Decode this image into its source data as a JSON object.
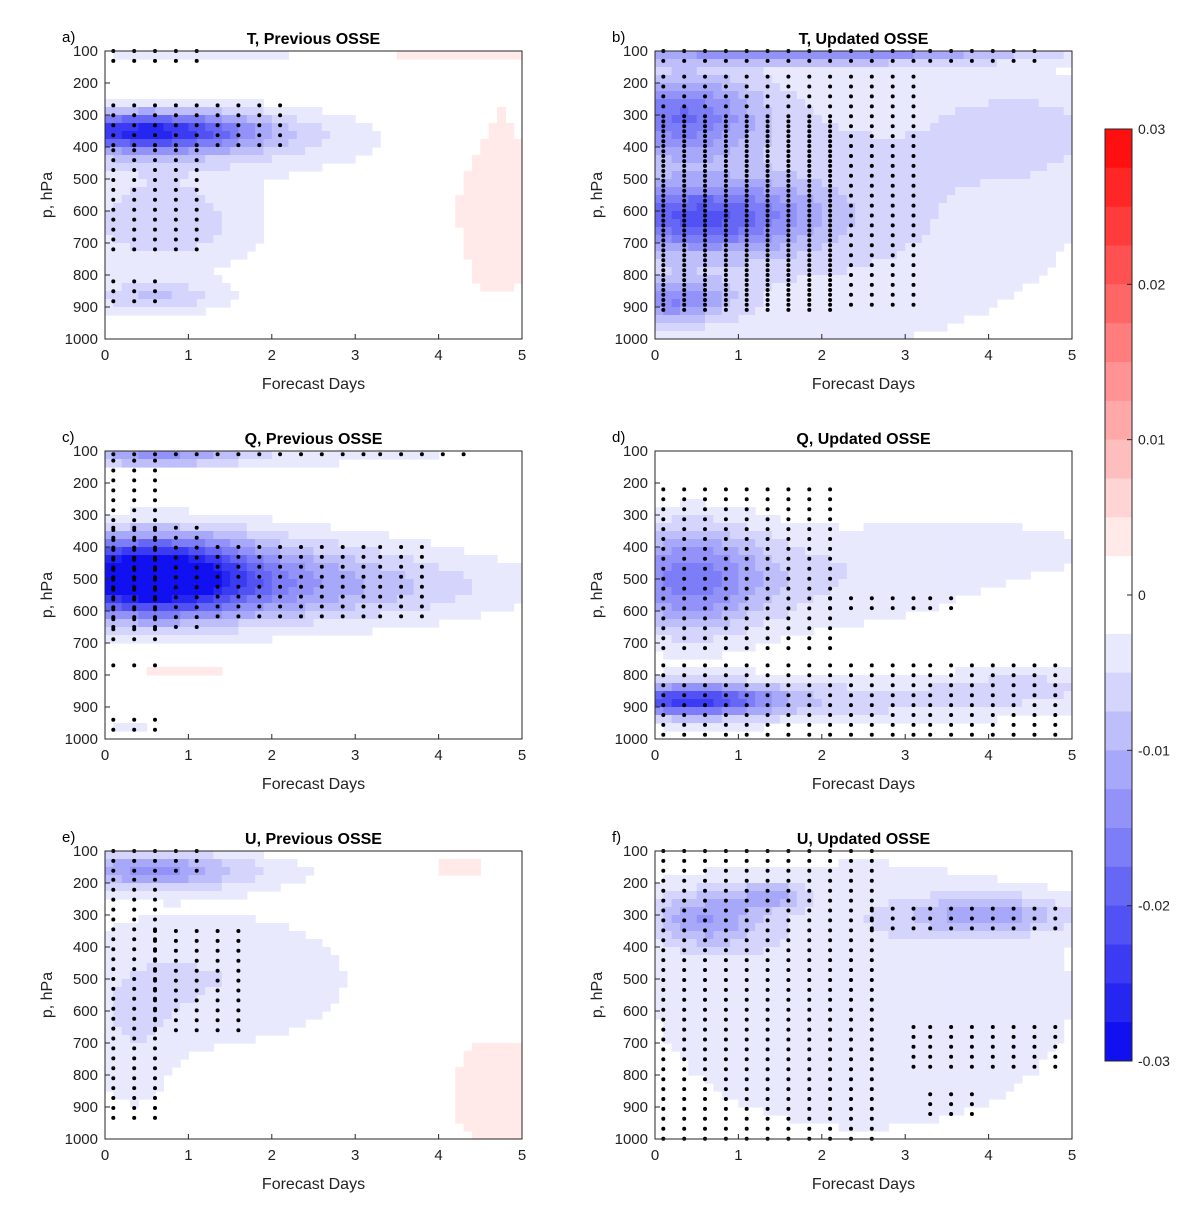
{
  "colors": {
    "negative_max": "#1010f0",
    "positive_max": "#ff1010",
    "neutral": "#ffffff",
    "dot": "#000000",
    "axis": "#262626"
  },
  "chart_data": [
    {
      "type": "heatmap",
      "panel_label": "a)",
      "title": "T, Previous OSSE",
      "xlabel": "Forecast Days",
      "ylabel": "p, hPa",
      "xlim": [
        0,
        5
      ],
      "ylim": [
        100,
        1000
      ],
      "x_ticks": [
        "0",
        "1",
        "2",
        "3",
        "4",
        "5"
      ],
      "y_ticks": [
        "100",
        "200",
        "300",
        "400",
        "500",
        "600",
        "700",
        "800",
        "900",
        "1000"
      ],
      "blobs": [
        {
          "x": 0.5,
          "y": 350,
          "rx": 1.3,
          "ry": 60,
          "v": -0.021
        },
        {
          "x": 0.9,
          "y": 380,
          "rx": 2.6,
          "ry": 110,
          "v": -0.006
        },
        {
          "x": 0.7,
          "y": 640,
          "rx": 1.2,
          "ry": 160,
          "v": -0.007
        },
        {
          "x": 0.6,
          "y": 870,
          "rx": 0.9,
          "ry": 50,
          "v": -0.007
        },
        {
          "x": 1.3,
          "y": 110,
          "rx": 1.7,
          "ry": 30,
          "v": -0.004
        },
        {
          "x": 4.7,
          "y": 550,
          "rx": 0.7,
          "ry": 450,
          "v": 0.004
        },
        {
          "x": 4.0,
          "y": 110,
          "rx": 1.2,
          "ry": 20,
          "v": 0.004
        },
        {
          "x": 1.2,
          "y": 200,
          "rx": 1.2,
          "ry": 20,
          "v": 0.003
        }
      ],
      "stipple": [
        {
          "x0": 0.1,
          "x1": 2.1,
          "y0": 270,
          "y1": 410
        },
        {
          "x0": 0.1,
          "x1": 1.1,
          "y0": 410,
          "y1": 740
        },
        {
          "x0": 0.1,
          "x1": 0.6,
          "y0": 820,
          "y1": 900
        },
        {
          "x0": 0.1,
          "x1": 1.1,
          "y0": 100,
          "y1": 140
        }
      ]
    },
    {
      "type": "heatmap",
      "panel_label": "b)",
      "title": "T, Updated OSSE",
      "xlabel": "Forecast Days",
      "ylabel": "p, hPa",
      "xlim": [
        0,
        5
      ],
      "ylim": [
        100,
        1000
      ],
      "x_ticks": [
        "0",
        "1",
        "2",
        "3",
        "4",
        "5"
      ],
      "y_ticks": [
        "100",
        "200",
        "300",
        "400",
        "500",
        "600",
        "700",
        "800",
        "900",
        "1000"
      ],
      "blobs": [
        {
          "x": 0.3,
          "y": 300,
          "rx": 0.9,
          "ry": 130,
          "v": -0.014
        },
        {
          "x": 0.5,
          "y": 620,
          "rx": 1.3,
          "ry": 110,
          "v": -0.016
        },
        {
          "x": 0.2,
          "y": 880,
          "rx": 0.7,
          "ry": 70,
          "v": -0.012
        },
        {
          "x": 2.0,
          "y": 110,
          "rx": 2.6,
          "ry": 30,
          "v": -0.012
        },
        {
          "x": 1.8,
          "y": 560,
          "rx": 3.5,
          "ry": 500,
          "v": -0.006
        },
        {
          "x": 4.5,
          "y": 350,
          "rx": 1.0,
          "ry": 150,
          "v": -0.004
        }
      ],
      "stipple": [
        {
          "x0": 0.1,
          "x1": 4.6,
          "y0": 100,
          "y1": 140
        },
        {
          "x0": 0.1,
          "x1": 3.1,
          "y0": 180,
          "y1": 920
        },
        {
          "x0": 0.1,
          "x1": 2.1,
          "y0": 320,
          "y1": 920
        }
      ]
    },
    {
      "type": "heatmap",
      "panel_label": "c)",
      "title": "Q, Previous OSSE",
      "xlabel": "Forecast Days",
      "ylabel": "p, hPa",
      "xlim": [
        0,
        5
      ],
      "ylim": [
        100,
        1000
      ],
      "x_ticks": [
        "0",
        "1",
        "2",
        "3",
        "4",
        "5"
      ],
      "y_ticks": [
        "100",
        "200",
        "300",
        "400",
        "500",
        "600",
        "700",
        "800",
        "900",
        "1000"
      ],
      "blobs": [
        {
          "x": 0.5,
          "y": 490,
          "rx": 1.2,
          "ry": 120,
          "v": -0.028
        },
        {
          "x": 1.6,
          "y": 500,
          "rx": 2.4,
          "ry": 150,
          "v": -0.009
        },
        {
          "x": 2.6,
          "y": 530,
          "rx": 3.0,
          "ry": 100,
          "v": -0.004
        },
        {
          "x": 0.6,
          "y": 120,
          "rx": 1.0,
          "ry": 25,
          "v": -0.012
        },
        {
          "x": 2.5,
          "y": 120,
          "rx": 2.5,
          "ry": 25,
          "v": -0.004
        },
        {
          "x": 1.0,
          "y": 790,
          "rx": 1.6,
          "ry": 40,
          "v": 0.003
        },
        {
          "x": 0.3,
          "y": 970,
          "rx": 0.5,
          "ry": 40,
          "v": -0.003
        }
      ],
      "stipple": [
        {
          "x0": 0.1,
          "x1": 4.5,
          "y0": 110,
          "y1": 130
        },
        {
          "x0": 0.1,
          "x1": 0.6,
          "y0": 130,
          "y1": 700
        },
        {
          "x0": 0.1,
          "x1": 1.3,
          "y0": 340,
          "y1": 680
        },
        {
          "x0": 1.3,
          "x1": 4.0,
          "y0": 400,
          "y1": 620
        },
        {
          "x0": 0.1,
          "x1": 0.6,
          "y0": 770,
          "y1": 800
        },
        {
          "x0": 0.1,
          "x1": 0.6,
          "y0": 940,
          "y1": 990
        }
      ]
    },
    {
      "type": "heatmap",
      "panel_label": "d)",
      "title": "Q, Updated OSSE",
      "xlabel": "Forecast Days",
      "ylabel": "p, hPa",
      "xlim": [
        0,
        5
      ],
      "ylim": [
        100,
        1000
      ],
      "x_ticks": [
        "0",
        "1",
        "2",
        "3",
        "4",
        "5"
      ],
      "y_ticks": [
        "100",
        "200",
        "300",
        "400",
        "500",
        "600",
        "700",
        "800",
        "900",
        "1000"
      ],
      "blobs": [
        {
          "x": 0.4,
          "y": 500,
          "rx": 0.9,
          "ry": 170,
          "v": -0.013
        },
        {
          "x": 1.6,
          "y": 500,
          "rx": 2.6,
          "ry": 180,
          "v": -0.005
        },
        {
          "x": 0.4,
          "y": 880,
          "rx": 1.0,
          "ry": 50,
          "v": -0.02
        },
        {
          "x": 2.2,
          "y": 880,
          "rx": 3.0,
          "ry": 80,
          "v": -0.006
        },
        {
          "x": 4.5,
          "y": 830,
          "rx": 1.0,
          "ry": 60,
          "v": -0.004
        },
        {
          "x": 4.2,
          "y": 400,
          "rx": 1.5,
          "ry": 90,
          "v": -0.003
        },
        {
          "x": 2.5,
          "y": 100,
          "rx": 2.5,
          "ry": 12,
          "v": 0.003
        }
      ],
      "stipple": [
        {
          "x0": 0.1,
          "x1": 2.1,
          "y0": 220,
          "y1": 720
        },
        {
          "x0": 2.1,
          "x1": 3.6,
          "y0": 560,
          "y1": 620
        },
        {
          "x0": 0.1,
          "x1": 4.8,
          "y0": 770,
          "y1": 1000
        }
      ]
    },
    {
      "type": "heatmap",
      "panel_label": "e)",
      "title": "U, Previous OSSE",
      "xlabel": "Forecast Days",
      "ylabel": "p, hPa",
      "xlim": [
        0,
        5
      ],
      "ylim": [
        100,
        1000
      ],
      "x_ticks": [
        "0",
        "1",
        "2",
        "3",
        "4",
        "5"
      ],
      "y_ticks": [
        "100",
        "200",
        "300",
        "400",
        "500",
        "600",
        "700",
        "800",
        "900",
        "1000"
      ],
      "blobs": [
        {
          "x": 0.5,
          "y": 160,
          "rx": 1.0,
          "ry": 60,
          "v": -0.011
        },
        {
          "x": 1.2,
          "y": 500,
          "rx": 2.0,
          "ry": 240,
          "v": -0.005
        },
        {
          "x": 0.3,
          "y": 750,
          "rx": 0.6,
          "ry": 250,
          "v": -0.003
        },
        {
          "x": 1.5,
          "y": 160,
          "rx": 1.5,
          "ry": 60,
          "v": -0.003
        },
        {
          "x": 4.7,
          "y": 850,
          "rx": 0.8,
          "ry": 250,
          "v": 0.004
        },
        {
          "x": 4.2,
          "y": 150,
          "rx": 1.0,
          "ry": 60,
          "v": 0.003
        }
      ],
      "stipple": [
        {
          "x0": 0.1,
          "x1": 1.1,
          "y0": 100,
          "y1": 190
        },
        {
          "x0": 0.1,
          "x1": 0.6,
          "y0": 190,
          "y1": 950
        },
        {
          "x0": 0.6,
          "x1": 1.6,
          "y0": 350,
          "y1": 680
        }
      ]
    },
    {
      "type": "heatmap",
      "panel_label": "f)",
      "title": "U, Updated OSSE",
      "xlabel": "Forecast Days",
      "ylabel": "p, hPa",
      "xlim": [
        0,
        5
      ],
      "ylim": [
        100,
        1000
      ],
      "x_ticks": [
        "0",
        "1",
        "2",
        "3",
        "4",
        "5"
      ],
      "y_ticks": [
        "100",
        "200",
        "300",
        "400",
        "500",
        "600",
        "700",
        "800",
        "900",
        "1000"
      ],
      "blobs": [
        {
          "x": 0.6,
          "y": 310,
          "rx": 0.7,
          "ry": 90,
          "v": -0.01
        },
        {
          "x": 2.5,
          "y": 550,
          "rx": 3.0,
          "ry": 500,
          "v": -0.005
        },
        {
          "x": 4.0,
          "y": 300,
          "rx": 1.0,
          "ry": 60,
          "v": -0.009
        },
        {
          "x": 1.4,
          "y": 240,
          "rx": 0.4,
          "ry": 40,
          "v": -0.008
        }
      ],
      "stipple": [
        {
          "x0": 0.1,
          "x1": 2.6,
          "y0": 100,
          "y1": 1000
        },
        {
          "x0": 2.6,
          "x1": 4.8,
          "y0": 280,
          "y1": 360
        },
        {
          "x0": 3.1,
          "x1": 4.8,
          "y0": 650,
          "y1": 780
        },
        {
          "x0": 3.3,
          "x1": 4.0,
          "y0": 860,
          "y1": 940
        }
      ]
    }
  ],
  "colorbar": {
    "min": -0.03,
    "max": 0.03,
    "levels": 24,
    "tick_values": [
      0.03,
      0.02,
      0.01,
      0,
      -0.01,
      -0.02,
      -0.03
    ],
    "tick_labels": [
      "0.03",
      "0.02",
      "0.01",
      "0",
      "-0.01",
      "-0.02",
      "-0.03"
    ]
  }
}
